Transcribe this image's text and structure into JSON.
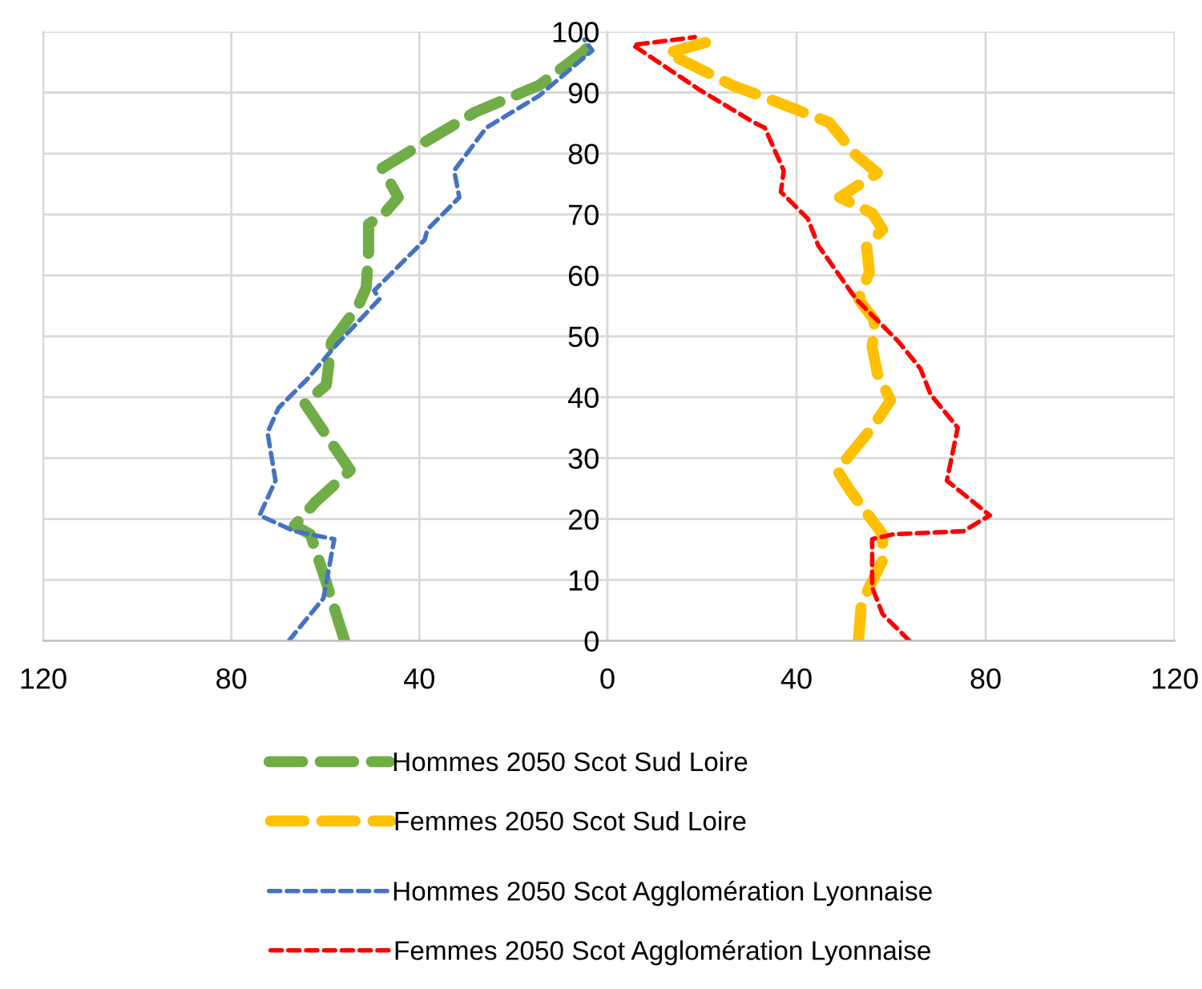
{
  "chart_data": [
    {
      "type": "line",
      "xlim": [
        120,
        0
      ],
      "xticks": [
        120,
        80,
        40,
        {
          "value": 0,
          "label": null
        }
      ],
      "ylim": [
        0,
        100
      ],
      "yticks": [
        0,
        10,
        20,
        30,
        40,
        50,
        60,
        70,
        80,
        90,
        100
      ],
      "tick_labels": "x",
      "grid": true,
      "legend": "bottom",
      "marker": "none",
      "series": [
        {
          "name": "Hommes 2050 Scot Sud Loire",
          "color": "#70ad47",
          "line_style": "dashed",
          "x": [
            55.9,
            59.8,
            63.2,
            66.6,
            62.1,
            54.7,
            58.7,
            64.4,
            59.8,
            58.7,
            53,
            51.3,
            50.8,
            50.8,
            47.4,
            44.5,
            47.9,
            39.4,
            28.1,
            14.5,
            5.4,
            3.7,
            5.4
          ],
          "values": [
            0,
            9.6,
            17.5,
            18.9,
            22.8,
            28,
            32.5,
            39,
            42,
            49,
            55,
            58,
            64,
            68.4,
            70.2,
            72.8,
            77.6,
            81.6,
            86.8,
            91.2,
            96.5,
            97.8,
            98.2
          ]
        },
        {
          "name": "Hommes 2050 Scot Agglomération Lyonnaise",
          "color": "#4472c4",
          "line_style": "dashed",
          "x": [
            67.8,
            60.4,
            58.1,
            66.6,
            74,
            70.6,
            72.3,
            70,
            63.8,
            58.1,
            48.5,
            49.6,
            38.9,
            38.3,
            31.5,
            32.6,
            25.8,
            14.5,
            3.2,
            4.9
          ],
          "values": [
            0,
            7,
            16.7,
            18,
            20.6,
            26.3,
            34.2,
            38.2,
            43,
            48.2,
            56.1,
            57.5,
            65.8,
            67.5,
            72.8,
            77.2,
            84.2,
            89.5,
            96.9,
            98.7
          ]
        }
      ]
    },
    {
      "type": "line",
      "xlim": [
        0,
        120
      ],
      "xticks": [
        0,
        40,
        80,
        120
      ],
      "ylim": [
        0,
        100
      ],
      "yticks": [
        0,
        10,
        20,
        30,
        40,
        50,
        60,
        70,
        80,
        90,
        100
      ],
      "grid": true,
      "legend": "bottom",
      "marker": "none",
      "series": [
        {
          "name": "Femmes 2050 Scot Sud Loire",
          "color": "#ffc000",
          "line_style": "dashed",
          "x": [
            53.1,
            53.7,
            58.2,
            58.2,
            51.4,
            48.6,
            56,
            59.9,
            57.1,
            56,
            56.5,
            53.1,
            55.4,
            54.8,
            58.2,
            56,
            49.1,
            57.1,
            52.5,
            46.9,
            36.7,
            26.4,
            12.8,
            23
          ],
          "values": [
            0,
            6.1,
            13.2,
            17.5,
            24.6,
            28,
            35,
            39.5,
            43.9,
            48.2,
            52.6,
            56.1,
            60.5,
            64.9,
            67.5,
            70.2,
            72.8,
            76.8,
            79.8,
            85.1,
            88.2,
            91.2,
            96.5,
            98.7
          ]
        },
        {
          "name": "Femmes 2050 Scot Agglomération Lyonnaise",
          "color": "#ff0000",
          "line_style": "dashed",
          "x": [
            63.9,
            58.2,
            56,
            56,
            60.5,
            75.3,
            80.9,
            71.8,
            74.1,
            68.4,
            66.2,
            61.6,
            57.1,
            52.6,
            44.6,
            42.4,
            36.7,
            37.3,
            33.3,
            31,
            19.6,
            5.4,
            18.5
          ],
          "values": [
            0,
            4.4,
            8.8,
            16.7,
            17.5,
            18,
            20.6,
            26.3,
            35,
            40.4,
            44.7,
            49.1,
            52.6,
            56.1,
            64.9,
            69.3,
            73.7,
            77.2,
            84.2,
            85.1,
            90.4,
            97.8,
            99.1
          ]
        }
      ]
    }
  ]
}
